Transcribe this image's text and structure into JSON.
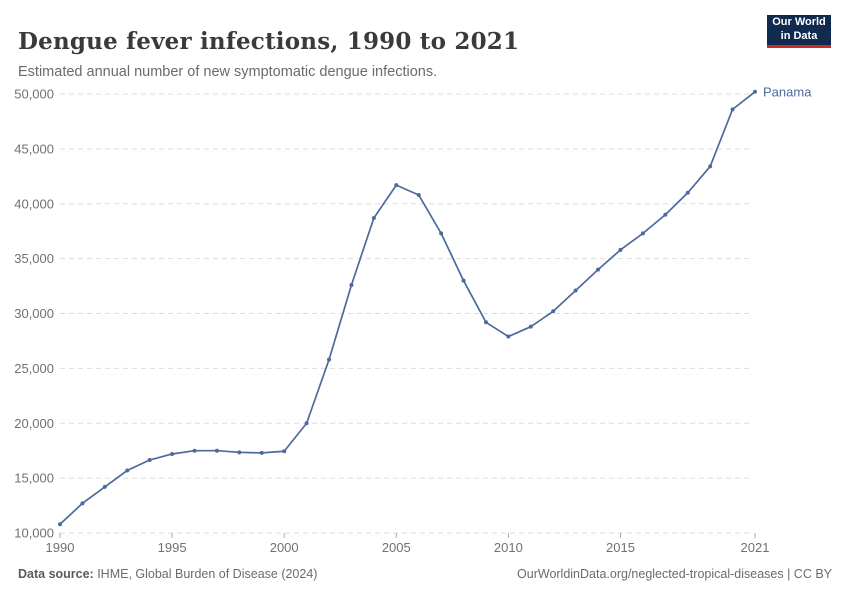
{
  "header": {
    "title": "Dengue fever infections, 1990 to 2021",
    "subtitle": "Estimated annual number of new symptomatic dengue infections.",
    "logo": {
      "line1": "Our World",
      "line2": "in Data",
      "bg_color": "#102a50",
      "accent_color": "#c82d26"
    }
  },
  "chart_data": {
    "type": "line",
    "title": "Dengue fever infections, 1990 to 2021",
    "subtitle": "Estimated annual number of new symptomatic dengue infections.",
    "xlim": [
      1990,
      2021
    ],
    "ylim": [
      10000,
      50000
    ],
    "x_ticks": [
      1990,
      1995,
      2000,
      2005,
      2010,
      2015,
      2021
    ],
    "y_ticks": [
      10000,
      15000,
      20000,
      25000,
      30000,
      35000,
      40000,
      45000,
      50000
    ],
    "grid": "horizontal-dashed",
    "legend_position": "end-of-line-label",
    "series": [
      {
        "name": "Panama",
        "color": "#4C6A9C",
        "x": [
          1990,
          1991,
          1992,
          1993,
          1994,
          1995,
          1996,
          1997,
          1998,
          1999,
          2000,
          2001,
          2002,
          2003,
          2004,
          2005,
          2006,
          2007,
          2008,
          2009,
          2010,
          2011,
          2012,
          2013,
          2014,
          2015,
          2016,
          2017,
          2018,
          2019,
          2020,
          2021
        ],
        "values": [
          10800,
          12700,
          14200,
          15700,
          16650,
          17200,
          17500,
          17500,
          17350,
          17300,
          17450,
          20000,
          25800,
          32600,
          38700,
          41700,
          40800,
          37300,
          33000,
          29200,
          27900,
          28800,
          30200,
          32100,
          34000,
          35800,
          37300,
          39000,
          41000,
          43400,
          48600,
          50200
        ]
      }
    ]
  },
  "footer": {
    "source_label": "Data source:",
    "source_text": " IHME, Global Burden of Disease (2024)",
    "link_text": "OurWorldinData.org/neglected-tropical-diseases | CC BY"
  },
  "colors": {
    "line": "#4C6A9C",
    "grid": "#dddddd",
    "tick_label": "#717171",
    "axis_tick": "#a9a9a9",
    "title": "#3a3a3a",
    "subtitle": "#6b6b6b"
  }
}
